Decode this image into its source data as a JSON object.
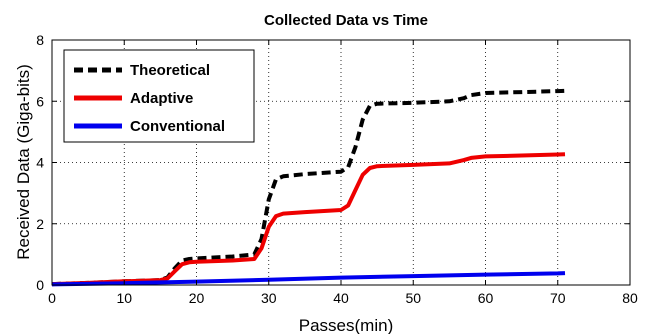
{
  "chart_data": {
    "type": "line",
    "title": "Collected Data vs Time",
    "xlabel": "Passes(min)",
    "ylabel": "Received Data (Giga-bits)",
    "xlim": [
      0,
      80
    ],
    "ylim": [
      0,
      8
    ],
    "xticks": [
      0,
      10,
      20,
      30,
      40,
      50,
      60,
      70,
      80
    ],
    "yticks": [
      0,
      2,
      4,
      6,
      8
    ],
    "grid": true,
    "legend_position": "top-left",
    "series": [
      {
        "name": "Theoretical",
        "color": "#000000",
        "style": "dashed",
        "x": [
          0,
          5,
          10,
          15,
          16,
          17,
          18,
          19,
          20,
          25,
          28,
          29,
          30,
          31,
          32,
          35,
          40,
          41,
          42,
          43,
          44,
          45,
          50,
          55,
          57,
          58,
          60,
          65,
          70,
          71
        ],
        "y": [
          0.03,
          0.07,
          0.12,
          0.16,
          0.25,
          0.55,
          0.8,
          0.85,
          0.87,
          0.93,
          1.0,
          1.5,
          2.8,
          3.45,
          3.55,
          3.62,
          3.7,
          3.85,
          4.5,
          5.4,
          5.85,
          5.92,
          5.95,
          6.0,
          6.1,
          6.2,
          6.27,
          6.3,
          6.33,
          6.34
        ]
      },
      {
        "name": "Adaptive",
        "color": "#ee0000",
        "style": "solid",
        "x": [
          0,
          5,
          10,
          15,
          16,
          17,
          18,
          19,
          20,
          25,
          28,
          29,
          30,
          31,
          32,
          35,
          40,
          41,
          42,
          43,
          44,
          45,
          50,
          55,
          57,
          58,
          60,
          65,
          70,
          71
        ],
        "y": [
          0.03,
          0.07,
          0.12,
          0.16,
          0.22,
          0.45,
          0.68,
          0.74,
          0.76,
          0.8,
          0.85,
          1.2,
          1.9,
          2.25,
          2.33,
          2.38,
          2.45,
          2.6,
          3.1,
          3.6,
          3.82,
          3.88,
          3.92,
          3.97,
          4.08,
          4.15,
          4.2,
          4.23,
          4.26,
          4.27
        ]
      },
      {
        "name": "Conventional",
        "color": "#0000ee",
        "style": "solid",
        "x": [
          0,
          10,
          20,
          30,
          40,
          50,
          60,
          70,
          71
        ],
        "y": [
          0.02,
          0.06,
          0.11,
          0.17,
          0.24,
          0.29,
          0.34,
          0.38,
          0.39
        ]
      }
    ]
  }
}
